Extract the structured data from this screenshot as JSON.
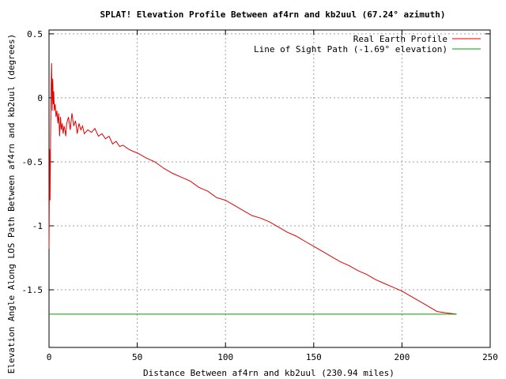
{
  "chart_data": {
    "type": "line",
    "title": "SPLAT! Elevation Profile Between af4rn and kb2uul (67.24° azimuth)",
    "xlabel": "Distance Between af4rn and kb2uul (230.94 miles)",
    "ylabel": "Elevation Angle Along LOS Path Between af4rn and kb2uul (degrees)",
    "xlim": [
      0,
      250
    ],
    "ylim": [
      -1.95,
      0.53
    ],
    "xticks": [
      0,
      50,
      100,
      150,
      200,
      250
    ],
    "xtick_labels": [
      "0",
      "50",
      "100",
      "150",
      "200",
      "250"
    ],
    "yticks": [
      0.5,
      0,
      -0.5,
      -1,
      -1.5
    ],
    "ytick_labels": [
      "0.5",
      "0",
      "-0.5",
      "-1",
      "-1.5"
    ],
    "grid": true,
    "legend_position": "top-right",
    "series": [
      {
        "name": "Real Earth Profile",
        "color": "#e00000",
        "x": [
          0,
          0.3,
          0.6,
          0.9,
          1.2,
          1.5,
          1.8,
          2.1,
          2.4,
          2.7,
          3.0,
          3.5,
          4.0,
          4.5,
          5.0,
          5.5,
          6.0,
          6.5,
          7.0,
          7.5,
          8.0,
          8.5,
          9.0,
          9.5,
          10,
          11,
          12,
          13,
          14,
          15,
          16,
          17,
          18,
          19,
          20,
          22,
          24,
          26,
          28,
          30,
          32,
          34,
          36,
          38,
          40,
          42,
          45,
          48,
          50,
          55,
          60,
          65,
          70,
          75,
          80,
          85,
          90,
          95,
          100,
          105,
          110,
          115,
          120,
          125,
          130,
          135,
          140,
          145,
          150,
          155,
          160,
          165,
          170,
          175,
          180,
          185,
          190,
          195,
          200,
          205,
          210,
          215,
          220,
          225,
          230.94
        ],
        "y": [
          -1.18,
          -0.4,
          -0.8,
          -0.3,
          0.1,
          0.27,
          -0.1,
          0.15,
          -0.05,
          0.05,
          -0.1,
          -0.05,
          -0.15,
          -0.1,
          -0.2,
          -0.12,
          -0.3,
          -0.15,
          -0.25,
          -0.2,
          -0.28,
          -0.22,
          -0.25,
          -0.3,
          -0.2,
          -0.15,
          -0.25,
          -0.12,
          -0.22,
          -0.18,
          -0.28,
          -0.2,
          -0.25,
          -0.22,
          -0.28,
          -0.25,
          -0.27,
          -0.24,
          -0.3,
          -0.28,
          -0.32,
          -0.3,
          -0.36,
          -0.34,
          -0.38,
          -0.37,
          -0.4,
          -0.42,
          -0.43,
          -0.47,
          -0.5,
          -0.55,
          -0.59,
          -0.62,
          -0.65,
          -0.7,
          -0.73,
          -0.78,
          -0.8,
          -0.84,
          -0.88,
          -0.92,
          -0.94,
          -0.97,
          -1.01,
          -1.05,
          -1.08,
          -1.12,
          -1.16,
          -1.2,
          -1.24,
          -1.28,
          -1.31,
          -1.35,
          -1.38,
          -1.42,
          -1.45,
          -1.48,
          -1.51,
          -1.55,
          -1.59,
          -1.63,
          -1.67,
          -1.68,
          -1.69
        ]
      },
      {
        "name": "Line of Sight Path (-1.69° elevation)",
        "color": "#00a000",
        "x": [
          0,
          230.94
        ],
        "y": [
          -1.69,
          -1.69
        ]
      }
    ]
  }
}
